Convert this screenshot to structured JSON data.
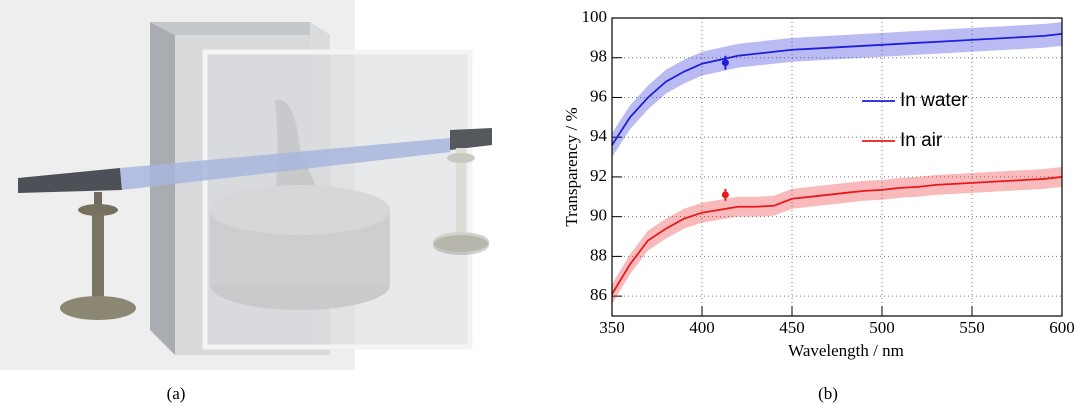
{
  "chart_data": {
    "type": "line",
    "xlabel": "Wavelength / nm",
    "ylabel": "Transparency / %",
    "x": [
      350,
      360,
      370,
      380,
      390,
      400,
      410,
      420,
      430,
      440,
      450,
      460,
      470,
      480,
      490,
      500,
      510,
      520,
      530,
      540,
      550,
      560,
      570,
      580,
      590,
      600
    ],
    "series": [
      {
        "name": "In water",
        "color": "#1f1fd8",
        "error": 0.6,
        "values": [
          93.6,
          95.0,
          96.0,
          96.8,
          97.3,
          97.7,
          97.9,
          98.1,
          98.2,
          98.3,
          98.4,
          98.45,
          98.5,
          98.55,
          98.6,
          98.65,
          98.7,
          98.75,
          98.8,
          98.85,
          98.9,
          98.95,
          99.0,
          99.05,
          99.1,
          99.2
        ],
        "measurement": {
          "x": 413,
          "y": 97.75,
          "error": 0.35
        }
      },
      {
        "name": "In air",
        "color": "#e8191e",
        "error": 0.5,
        "values": [
          86.1,
          87.6,
          88.8,
          89.4,
          89.9,
          90.2,
          90.35,
          90.5,
          90.5,
          90.55,
          90.9,
          91.0,
          91.1,
          91.2,
          91.3,
          91.35,
          91.45,
          91.5,
          91.6,
          91.65,
          91.7,
          91.75,
          91.8,
          91.85,
          91.9,
          92.0
        ],
        "measurement": {
          "x": 413,
          "y": 91.1,
          "error": 0.3
        }
      }
    ],
    "xlim": [
      350,
      600
    ],
    "xticks": [
      350,
      400,
      450,
      500,
      550,
      600
    ],
    "ylim": [
      85,
      100
    ],
    "yticks": [
      86,
      88,
      90,
      92,
      94,
      96,
      98,
      100
    ],
    "grid": true,
    "legend": "center right"
  },
  "captions": [
    "(a)",
    "(b)"
  ]
}
